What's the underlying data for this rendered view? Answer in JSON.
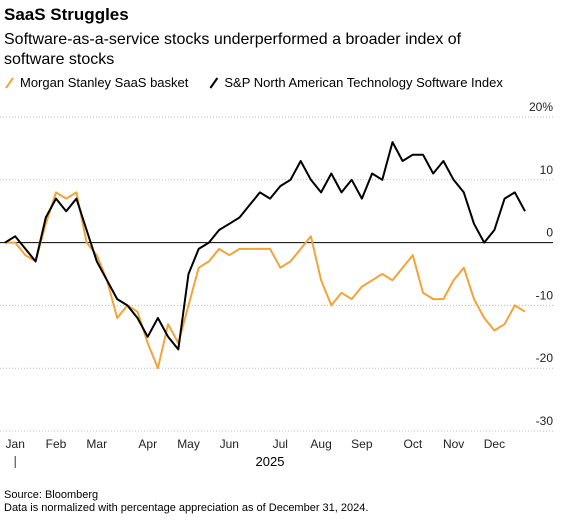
{
  "chart_data": {
    "type": "line",
    "title": "SaaS Struggles",
    "subtitle": "Software-as-a-service stocks underperformed a broader index of software stocks",
    "x_axis_label": "2025",
    "source": "Source: Bloomberg",
    "note": "Data is normalized with percentage appreciation as of December 31, 2024.",
    "categories": [
      null,
      "Jan",
      null,
      null,
      null,
      "Feb",
      null,
      null,
      null,
      "Mar",
      null,
      null,
      null,
      null,
      "Apr",
      null,
      null,
      null,
      "May",
      null,
      null,
      null,
      "Jun",
      null,
      null,
      null,
      null,
      "Jul",
      null,
      null,
      null,
      "Aug",
      null,
      null,
      null,
      "Sep",
      null,
      null,
      null,
      null,
      "Oct",
      null,
      null,
      null,
      "Nov",
      null,
      null,
      null,
      "Dec",
      null,
      null,
      null
    ],
    "series": [
      {
        "name": "Morgan Stanley SaaS basket",
        "color": "#f2a33a",
        "values": [
          0,
          0,
          -2,
          -3,
          3,
          8,
          7,
          8,
          0,
          -2,
          -6,
          -12,
          -10,
          -11,
          -16,
          -20,
          -13,
          -16,
          -10,
          -4,
          -3,
          -1,
          -2,
          -1,
          -1,
          -1,
          -1,
          -4,
          -3,
          -1,
          1,
          -6,
          -10,
          -8,
          -9,
          -7,
          -6,
          -5,
          -6,
          -4,
          -2,
          -8,
          -9,
          -9,
          -6,
          -4,
          -9,
          -12,
          -14,
          -13,
          -10,
          -11
        ]
      },
      {
        "name": "S&P North American Technology Software Index",
        "color": "#000000",
        "values": [
          0,
          1,
          -1,
          -3,
          4,
          7,
          5,
          7,
          2,
          -3,
          -6,
          -9,
          -10,
          -12,
          -15,
          -12,
          -15,
          -17,
          -5,
          -1,
          0,
          2,
          3,
          4,
          6,
          8,
          7,
          9,
          10,
          13,
          10,
          8,
          11,
          8,
          10,
          7,
          11,
          10,
          16,
          13,
          14,
          14,
          11,
          13,
          10,
          8,
          3,
          0,
          2,
          7,
          8,
          5
        ]
      }
    ],
    "ylim": [
      -30,
      20
    ],
    "yticks": [
      {
        "value": 20,
        "label": "20%"
      },
      10,
      0,
      -10,
      -20,
      -30
    ],
    "grid": true,
    "legend": "top"
  }
}
